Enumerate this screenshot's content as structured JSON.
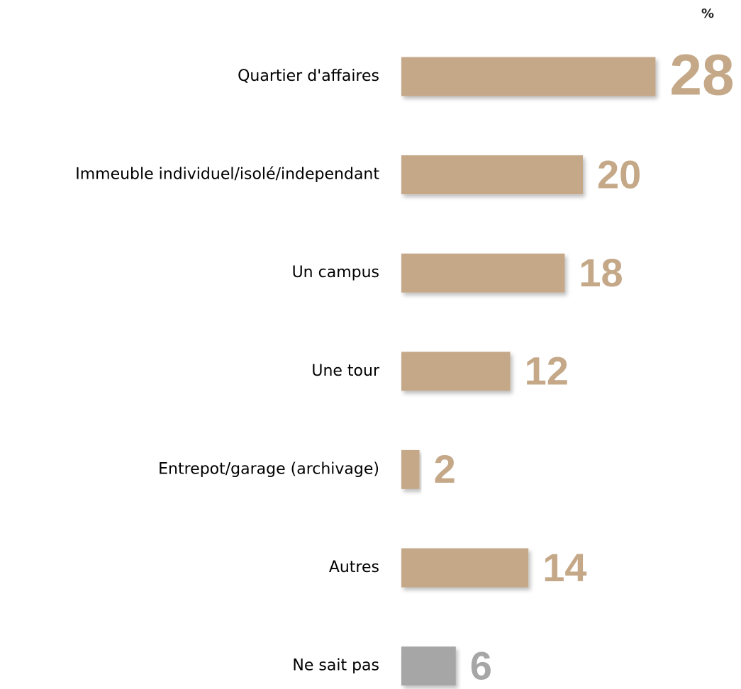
{
  "chart_data": {
    "type": "barh",
    "unit": "%",
    "categories": [
      "Quartier d'affaires",
      "Immeuble individuel/isolé/independant",
      "Un campus",
      "Une tour",
      "Entrepot/garage (archivage)",
      "Autres",
      "Ne sait pas"
    ],
    "values": [
      28,
      20,
      18,
      12,
      2,
      14,
      6
    ],
    "colors": [
      "#c4a888",
      "#c4a888",
      "#c4a888",
      "#c4a888",
      "#c4a888",
      "#c4a888",
      "#a6a6a6"
    ]
  }
}
